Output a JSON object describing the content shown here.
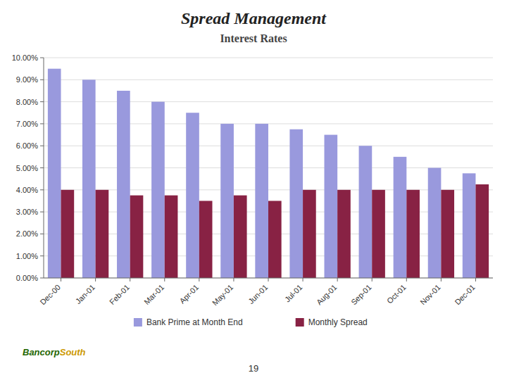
{
  "chart_data": {
    "type": "bar",
    "title": "Spread Management",
    "subtitle": "Interest Rates",
    "categories": [
      "Dec-00",
      "Jan-01",
      "Feb-01",
      "Mar-01",
      "Apr-01",
      "May-01",
      "Jun-01",
      "Jul-01",
      "Aug-01",
      "Sep-01",
      "Oct-01",
      "Nov-01",
      "Dec-01"
    ],
    "series": [
      {
        "name": "Bank Prime at Month End",
        "color": "#9999DD",
        "values": [
          9.5,
          9.0,
          8.5,
          8.0,
          7.5,
          7.0,
          7.0,
          6.75,
          6.5,
          6.0,
          5.5,
          5.0,
          4.75
        ]
      },
      {
        "name": "Monthly Spread",
        "color": "#882244",
        "values": [
          4.0,
          4.0,
          3.75,
          3.75,
          3.5,
          3.75,
          3.5,
          4.0,
          4.0,
          4.0,
          4.0,
          4.0,
          4.25
        ]
      }
    ],
    "ylim": [
      0,
      10.0
    ],
    "yticks": [
      {
        "value": 0.0,
        "label": "0.00%"
      },
      {
        "value": 1.0,
        "label": "1.00%"
      },
      {
        "value": 2.0,
        "label": "2.00%"
      },
      {
        "value": 3.0,
        "label": "3.00%"
      },
      {
        "value": 4.0,
        "label": "4.00%"
      },
      {
        "value": 5.0,
        "label": "5.00%"
      },
      {
        "value": 6.0,
        "label": "6.00%"
      },
      {
        "value": 7.0,
        "label": "7.00%"
      },
      {
        "value": 8.0,
        "label": "8.00%"
      },
      {
        "value": 9.0,
        "label": "9.00%"
      },
      {
        "value": 10.0,
        "label": "10.00%"
      }
    ],
    "grid": true,
    "legend": "bottom",
    "annotations": [
      "19",
      "Bancorp",
      "South"
    ]
  }
}
